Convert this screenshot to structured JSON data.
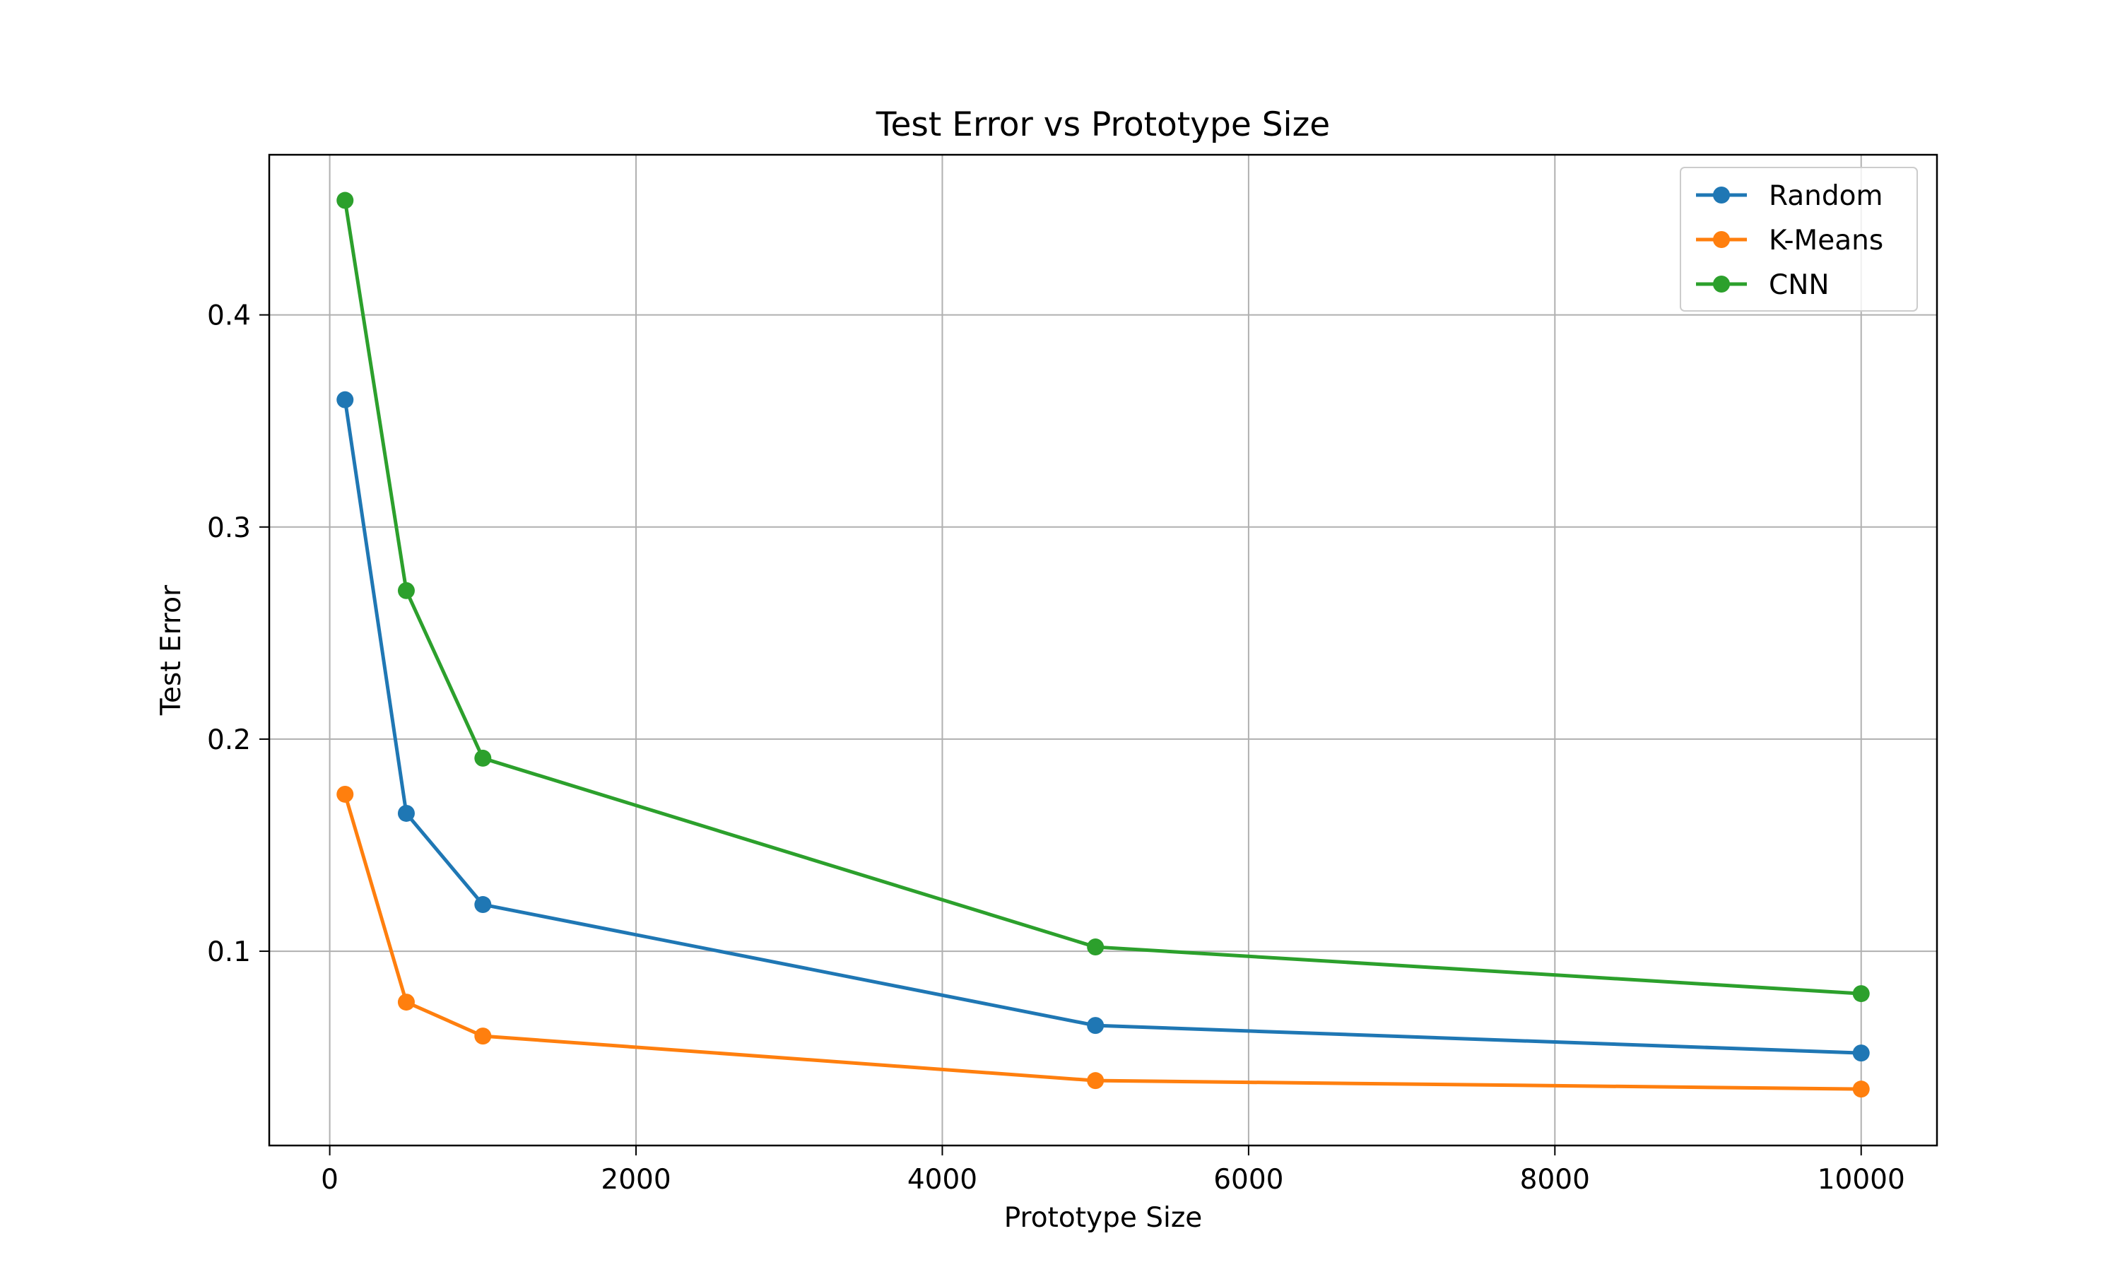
{
  "chart_data": {
    "type": "line",
    "title": "Test Error vs Prototype Size",
    "xlabel": "Prototype Size",
    "ylabel": "Test Error",
    "x": [
      100,
      500,
      1000,
      5000,
      10000
    ],
    "xlim": [
      -395,
      10495
    ],
    "ylim": [
      0.0084,
      0.4755
    ],
    "xticks": [
      0,
      2000,
      4000,
      6000,
      8000,
      10000
    ],
    "yticks": [
      0.1,
      0.2,
      0.3,
      0.4
    ],
    "grid": true,
    "legend_position": "top-right",
    "series": [
      {
        "name": "Random",
        "color": "#1f77b4",
        "values": [
          0.36,
          0.165,
          0.122,
          0.065,
          0.052
        ]
      },
      {
        "name": "K-Means",
        "color": "#ff7f0e",
        "values": [
          0.174,
          0.076,
          0.06,
          0.039,
          0.035
        ]
      },
      {
        "name": "CNN",
        "color": "#2ca02c",
        "values": [
          0.454,
          0.27,
          0.191,
          0.102,
          0.08
        ]
      }
    ]
  }
}
